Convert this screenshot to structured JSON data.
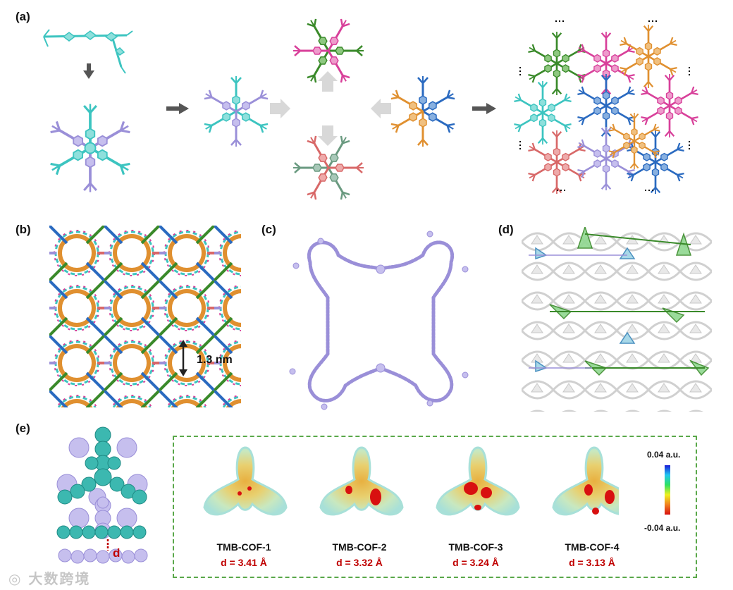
{
  "figure": {
    "panels": {
      "a": "(a)",
      "b": "(b)",
      "c": "(c)",
      "d": "(d)",
      "e": "(e)"
    },
    "pore_size_label": "1.3 nm",
    "distance_symbol": "d",
    "colorbar": {
      "max_label": "0.04 a.u.",
      "min_label": "-0.04 a.u."
    },
    "cofs": [
      {
        "name": "TMB-COF-1",
        "distance": "d = 3.41 Å"
      },
      {
        "name": "TMB-COF-2",
        "distance": "d = 3.32 Å"
      },
      {
        "name": "TMB-COF-3",
        "distance": "d = 3.24 Å"
      },
      {
        "name": "TMB-COF-4",
        "distance": "d = 3.13 Å"
      }
    ],
    "watermark": "大数跨境",
    "colors": {
      "cyan": "#3cc4c0",
      "purple": "#9a8fd8",
      "magenta": "#d8409a",
      "green": "#3a8a2a",
      "orange": "#e09030",
      "blue": "#2a6ac0",
      "salmon": "#d86868",
      "teal_gray": "#6a9a80",
      "esp_red": "#d81010",
      "esp_yellow": "#e8d070",
      "esp_cyan": "#a8e0d8"
    }
  }
}
